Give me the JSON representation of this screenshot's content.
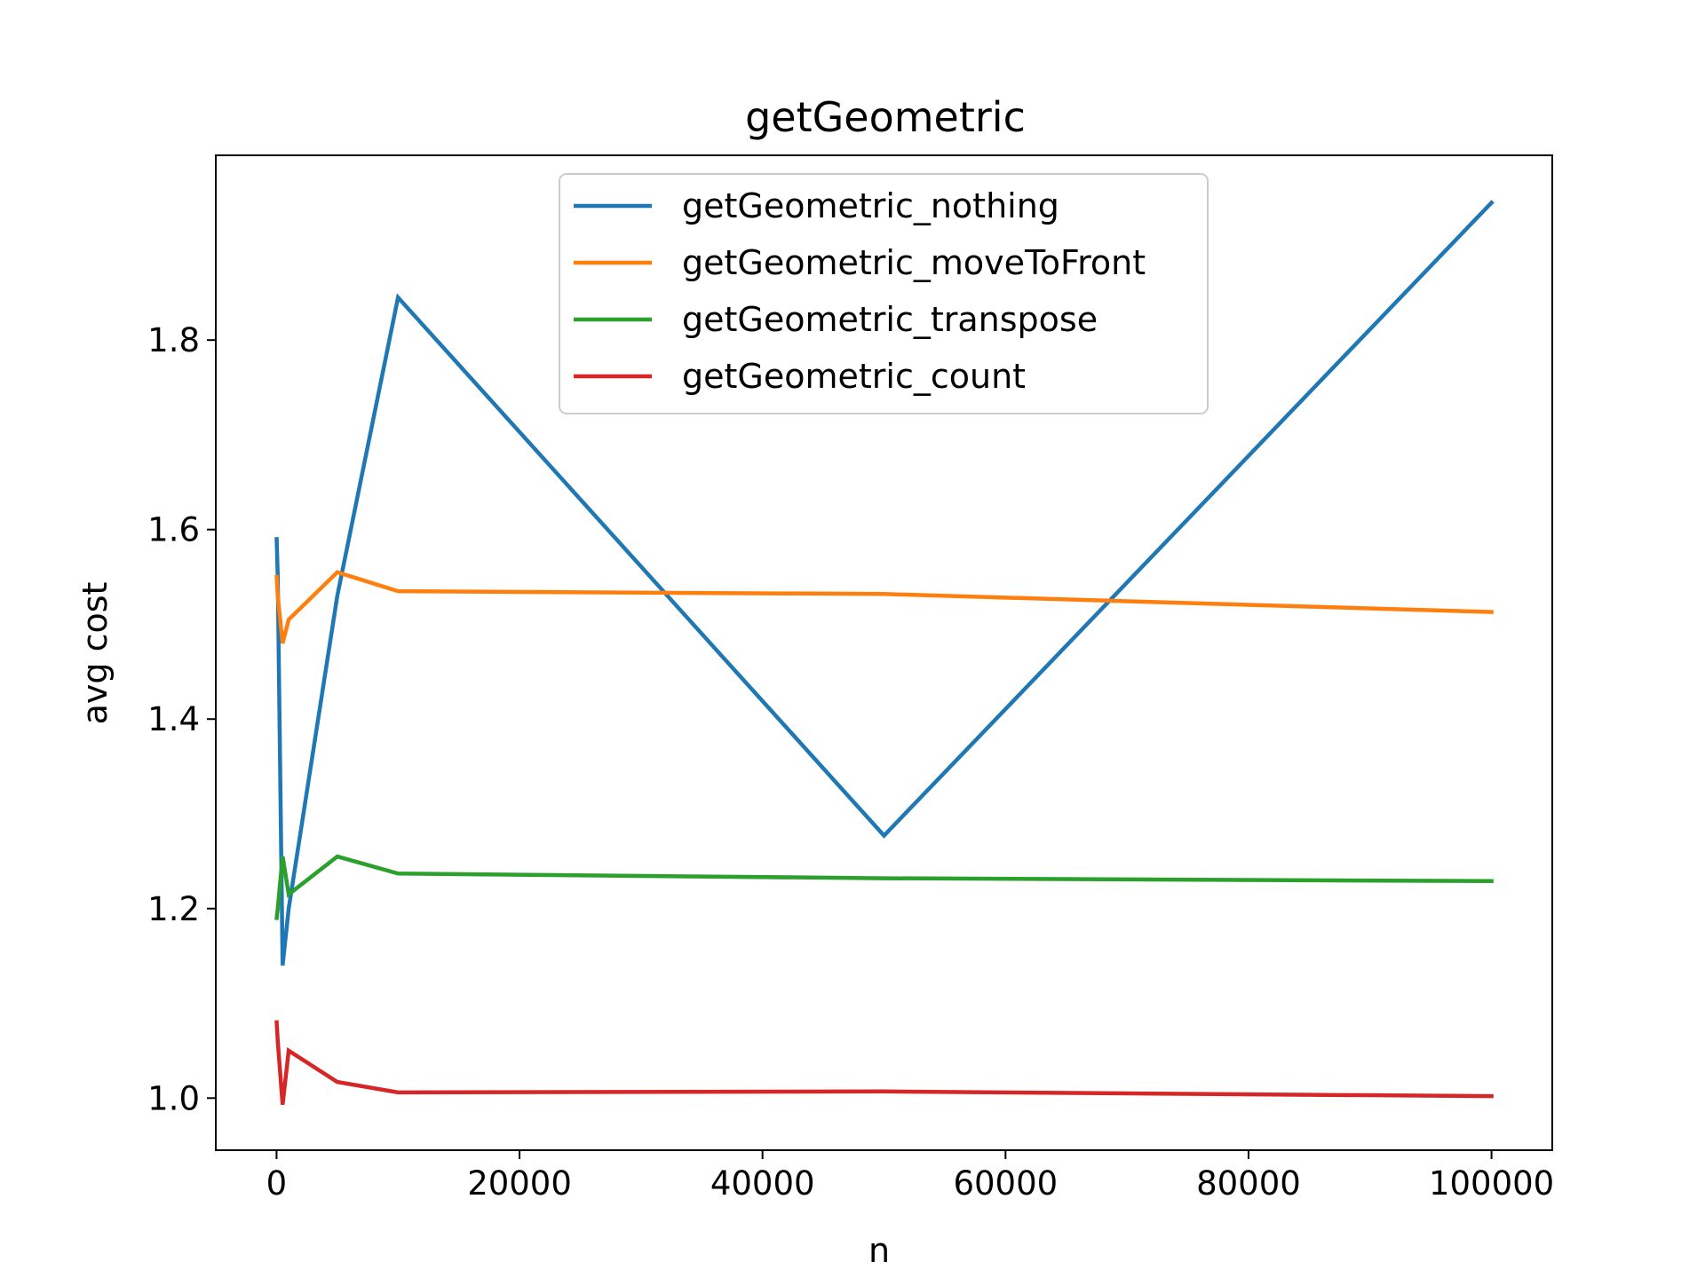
{
  "chart_data": {
    "type": "line",
    "title": "getGeometric",
    "xlabel": "n",
    "ylabel": "avg cost",
    "xlim": [
      -5000,
      105000
    ],
    "ylim": [
      0.945,
      1.995
    ],
    "xticks": [
      0,
      20000,
      40000,
      60000,
      80000,
      100000
    ],
    "xtick_labels": [
      "0",
      "20000",
      "40000",
      "60000",
      "80000",
      "100000"
    ],
    "yticks": [
      1.0,
      1.2,
      1.4,
      1.6,
      1.8
    ],
    "ytick_labels": [
      "1.0",
      "1.2",
      "1.4",
      "1.6",
      "1.8"
    ],
    "grid": false,
    "legend_position": "upper center",
    "x": [
      10,
      100,
      500,
      1000,
      5000,
      10000,
      50000,
      100000
    ],
    "series": [
      {
        "name": "getGeometric_nothing",
        "color": "#1f77b4",
        "values": [
          1.59,
          1.55,
          1.14,
          1.2,
          1.53,
          1.845,
          1.277,
          1.945
        ]
      },
      {
        "name": "getGeometric_moveToFront",
        "color": "#ff7f0e",
        "values": [
          1.55,
          1.53,
          1.48,
          1.505,
          1.555,
          1.535,
          1.532,
          1.513
        ]
      },
      {
        "name": "getGeometric_transpose",
        "color": "#2ca02c",
        "values": [
          1.19,
          1.2,
          1.255,
          1.215,
          1.255,
          1.237,
          1.232,
          1.229
        ]
      },
      {
        "name": "getGeometric_count",
        "color": "#d62728",
        "values": [
          1.08,
          1.06,
          0.993,
          1.05,
          1.017,
          1.006,
          1.007,
          1.002
        ]
      }
    ]
  }
}
